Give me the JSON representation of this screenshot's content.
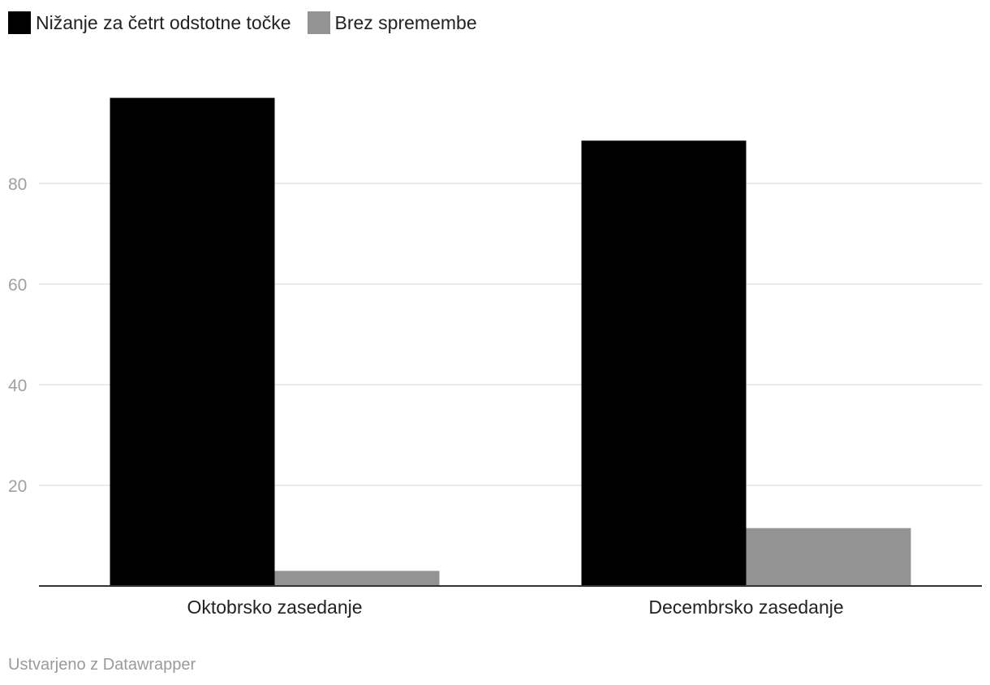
{
  "chart_data": {
    "type": "bar",
    "categories": [
      "Oktobrsko zasedanje",
      "Decembrsko zasedanje"
    ],
    "series": [
      {
        "name": "Nižanje za četrt odstotne točke",
        "values": [
          97,
          88.5
        ],
        "color": "#000000"
      },
      {
        "name": "Brez spremembe",
        "values": [
          3,
          11.5
        ],
        "color": "#939393"
      }
    ],
    "yticks": [
      20,
      40,
      60,
      80
    ],
    "ylim": [
      0,
      100
    ],
    "grid": true,
    "legend_position": "top-left"
  },
  "footer": {
    "credit": "Ustvarjeno z Datawrapper"
  }
}
